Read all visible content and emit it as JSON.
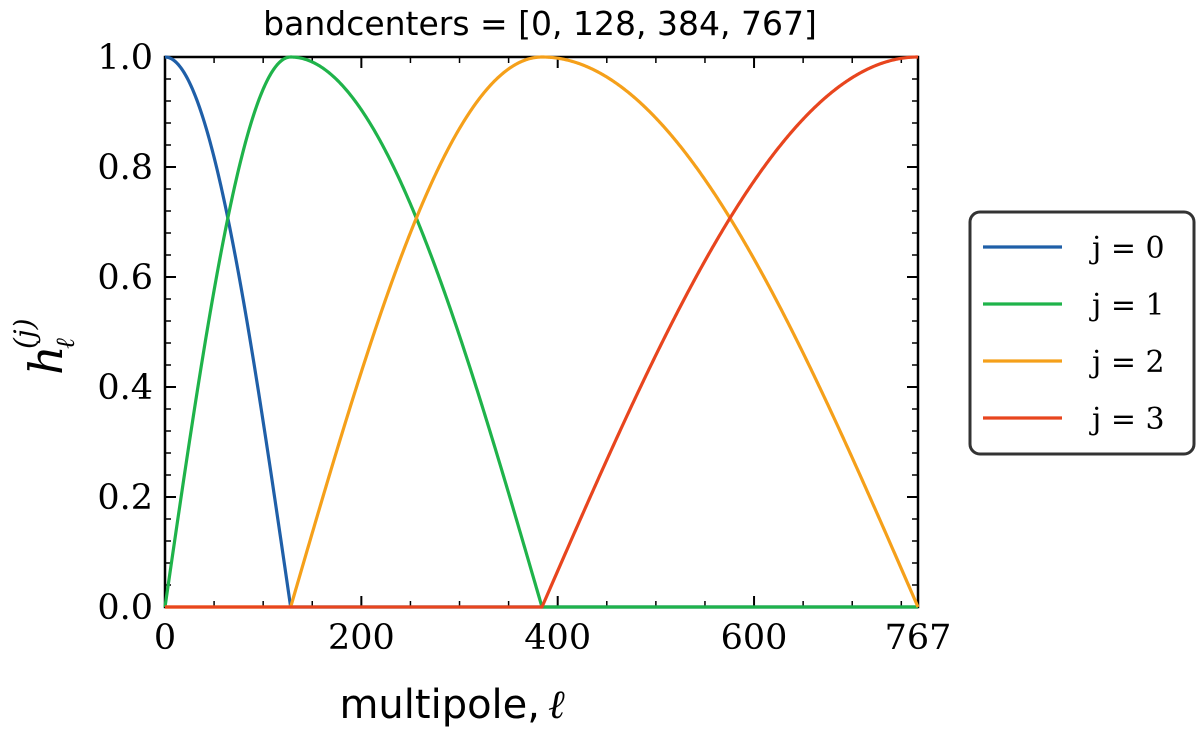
{
  "chart_data": {
    "type": "line",
    "title": "bandcenters = [0, 128, 384, 767]",
    "xlabel": "multipole,",
    "xlabel_symbol": "ℓ",
    "ylabel": "h",
    "ylabel_sub": "ℓ",
    "ylabel_sup": "(j)",
    "xlim": [
      0,
      767
    ],
    "ylim": [
      0.0,
      1.0
    ],
    "bandcenters": [
      0,
      128,
      384,
      767
    ],
    "x_ticks": [
      0,
      200,
      400,
      600,
      767
    ],
    "x_tick_labels": [
      "0",
      "200",
      "400",
      "600",
      "767"
    ],
    "y_ticks": [
      0.0,
      0.2,
      0.4,
      0.6,
      0.8,
      1.0
    ],
    "y_tick_labels": [
      "0.0",
      "0.2",
      "0.4",
      "0.6",
      "0.8",
      "1.0"
    ],
    "grid": false,
    "legend_position": "outside-right",
    "series": [
      {
        "name": "j = 0",
        "color": "#1f5fa8",
        "x": [
          0,
          16,
          32,
          48,
          64,
          80,
          96,
          112,
          128
        ],
        "y": [
          1.0,
          0.981,
          0.924,
          0.831,
          0.707,
          0.556,
          0.383,
          0.195,
          0.0
        ]
      },
      {
        "name": "j = 1",
        "color": "#1fb34a",
        "x": [
          0,
          16,
          32,
          48,
          64,
          80,
          96,
          112,
          128,
          160,
          192,
          224,
          256,
          288,
          320,
          352,
          384
        ],
        "y": [
          0.0,
          0.195,
          0.383,
          0.556,
          0.707,
          0.831,
          0.924,
          0.981,
          1.0,
          0.981,
          0.924,
          0.831,
          0.707,
          0.556,
          0.383,
          0.195,
          0.0
        ]
      },
      {
        "name": "j = 2",
        "color": "#f5a01a",
        "x": [
          128,
          160,
          192,
          224,
          256,
          288,
          320,
          352,
          384,
          432,
          480,
          528,
          576,
          623,
          671,
          719,
          767
        ],
        "y": [
          0.0,
          0.195,
          0.383,
          0.556,
          0.707,
          0.831,
          0.924,
          0.981,
          1.0,
          0.981,
          0.924,
          0.831,
          0.707,
          0.556,
          0.383,
          0.195,
          0.0
        ]
      },
      {
        "name": "j = 3",
        "color": "#e8451e",
        "x": [
          384,
          432,
          480,
          528,
          576,
          623,
          671,
          719,
          767
        ],
        "y": [
          0.0,
          0.195,
          0.383,
          0.556,
          0.707,
          0.831,
          0.924,
          0.981,
          1.0
        ]
      }
    ]
  }
}
